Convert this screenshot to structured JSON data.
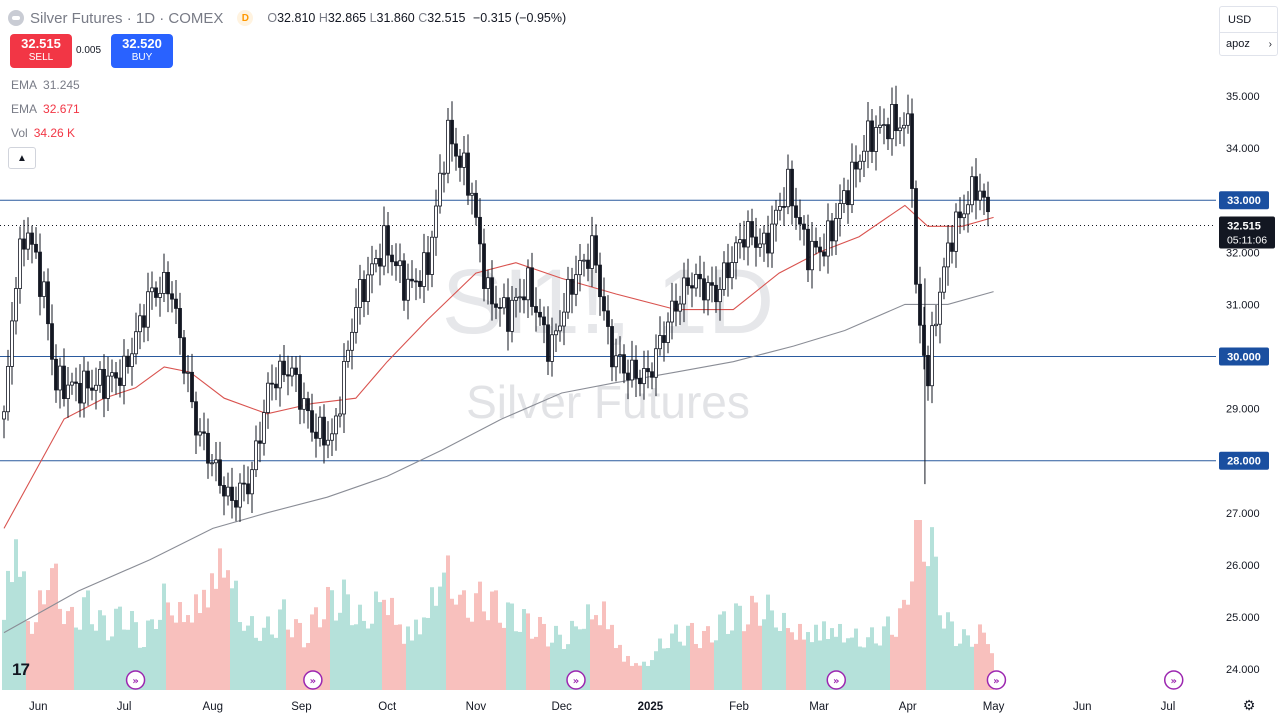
{
  "header": {
    "title": "Silver Futures · 1D · COMEX",
    "interval_badge": "D",
    "open_label": "O",
    "open": "32.810",
    "high_label": "H",
    "high": "32.865",
    "low_label": "L",
    "low": "31.860",
    "close_label": "C",
    "close": "32.515",
    "change": "−0.315 (−0.95%)"
  },
  "trade": {
    "sell_price": "32.515",
    "sell_label": "SELL",
    "spread": "0.005",
    "buy_price": "32.520",
    "buy_label": "BUY"
  },
  "indicators": [
    {
      "name": "EMA",
      "value": "31.245",
      "color": "#787b86"
    },
    {
      "name": "EMA",
      "value": "32.671",
      "color": "#f23645"
    },
    {
      "name": "Vol",
      "value": "34.26 K",
      "color": "#f23645"
    }
  ],
  "toolbar": {
    "currency": "USD",
    "unit": "apoz"
  },
  "watermark": {
    "ticker": "SI1!, 1D",
    "name": "Silver Futures"
  },
  "colors": {
    "up": "#ffffff",
    "down": "#131722",
    "candle_outline": "#131722",
    "ema_fast": "#d9534f",
    "ema_slow": "#8a8d96",
    "hline": "#2a5a9e",
    "vol_up": "#a8dcd4",
    "vol_down": "#f7b5b2",
    "price_tag": "#131722",
    "level_tag": "#1a4fa0"
  },
  "chart_data": {
    "type": "candlestick",
    "symbol": "SI1!",
    "ylim": [
      23.5,
      35.9
    ],
    "y_ticks": [
      "24.000",
      "25.000",
      "26.000",
      "27.000",
      "28.000",
      "29.000",
      "30.000",
      "31.000",
      "32.000",
      "33.000",
      "34.000",
      "35.000"
    ],
    "x_ticks": [
      "Jun",
      "Jul",
      "Aug",
      "Sep",
      "Oct",
      "Nov",
      "Dec",
      "2025",
      "Feb",
      "Mar",
      "Apr",
      "May",
      "Jun",
      "Jul"
    ],
    "horizontal_levels": [
      "33.000",
      "30.000",
      "28.000"
    ],
    "current_price": "32.515",
    "countdown": "05:11:06",
    "price_path": [
      [
        "2024-05-20",
        28.8
      ],
      [
        "2024-05-24",
        31.5
      ],
      [
        "2024-05-28",
        32.5
      ],
      [
        "2024-06-03",
        31.2
      ],
      [
        "2024-06-07",
        29.5
      ],
      [
        "2024-06-14",
        29.4
      ],
      [
        "2024-06-24",
        29.5
      ],
      [
        "2024-07-01",
        29.7
      ],
      [
        "2024-07-10",
        31.2
      ],
      [
        "2024-07-17",
        31.4
      ],
      [
        "2024-07-26",
        28.7
      ],
      [
        "2024-08-07",
        27.2
      ],
      [
        "2024-08-14",
        27.6
      ],
      [
        "2024-08-21",
        29.5
      ],
      [
        "2024-08-28",
        29.8
      ],
      [
        "2024-09-05",
        28.6
      ],
      [
        "2024-09-12",
        28.4
      ],
      [
        "2024-09-20",
        31.0
      ],
      [
        "2024-09-30",
        32.2
      ],
      [
        "2024-10-08",
        31.3
      ],
      [
        "2024-10-15",
        31.7
      ],
      [
        "2024-10-22",
        34.3
      ],
      [
        "2024-10-30",
        33.3
      ],
      [
        "2024-11-05",
        31.2
      ],
      [
        "2024-11-12",
        30.8
      ],
      [
        "2024-11-19",
        31.4
      ],
      [
        "2024-11-27",
        30.1
      ],
      [
        "2024-12-05",
        31.5
      ],
      [
        "2024-12-12",
        32.1
      ],
      [
        "2024-12-18",
        30.1
      ],
      [
        "2024-12-24",
        29.7
      ],
      [
        "2024-12-31",
        29.6
      ],
      [
        "2025-01-08",
        30.8
      ],
      [
        "2025-01-15",
        31.5
      ],
      [
        "2025-01-24",
        31.2
      ],
      [
        "2025-02-03",
        32.4
      ],
      [
        "2025-02-10",
        32.1
      ],
      [
        "2025-02-18",
        33.3
      ],
      [
        "2025-02-25",
        32.0
      ],
      [
        "2025-03-03",
        32.1
      ],
      [
        "2025-03-10",
        33.1
      ],
      [
        "2025-03-18",
        34.2
      ],
      [
        "2025-03-26",
        34.5
      ],
      [
        "2025-04-02",
        34.4
      ],
      [
        "2025-04-04",
        31.0
      ],
      [
        "2025-04-08",
        29.6
      ],
      [
        "2025-04-11",
        30.9
      ],
      [
        "2025-04-16",
        32.3
      ],
      [
        "2025-04-23",
        33.1
      ],
      [
        "2025-04-25",
        33.3
      ],
      [
        "2025-04-28",
        32.9
      ],
      [
        "2025-05-01",
        32.5
      ]
    ],
    "ema_fast_path": [
      [
        "2024-05-20",
        26.7
      ],
      [
        "2024-06-10",
        28.8
      ],
      [
        "2024-06-24",
        29.2
      ],
      [
        "2024-07-05",
        29.4
      ],
      [
        "2024-07-15",
        29.8
      ],
      [
        "2024-07-24",
        29.7
      ],
      [
        "2024-08-05",
        29.2
      ],
      [
        "2024-08-20",
        28.9
      ],
      [
        "2024-09-05",
        29.1
      ],
      [
        "2024-09-20",
        29.2
      ],
      [
        "2024-10-01",
        29.9
      ],
      [
        "2024-10-15",
        30.7
      ],
      [
        "2024-11-01",
        31.6
      ],
      [
        "2024-11-15",
        31.8
      ],
      [
        "2024-12-01",
        31.5
      ],
      [
        "2024-12-20",
        31.2
      ],
      [
        "2025-01-10",
        30.9
      ],
      [
        "2025-01-30",
        30.9
      ],
      [
        "2025-02-15",
        31.6
      ],
      [
        "2025-03-01",
        32.0
      ],
      [
        "2025-03-15",
        32.3
      ],
      [
        "2025-03-31",
        32.9
      ],
      [
        "2025-04-08",
        32.5
      ],
      [
        "2025-04-20",
        32.5
      ],
      [
        "2025-05-01",
        32.67
      ]
    ],
    "ema_slow_path": [
      [
        "2024-05-20",
        24.7
      ],
      [
        "2024-06-15",
        25.5
      ],
      [
        "2024-07-10",
        26.1
      ],
      [
        "2024-08-01",
        26.7
      ],
      [
        "2024-08-20",
        27.0
      ],
      [
        "2024-09-10",
        27.3
      ],
      [
        "2024-10-01",
        27.7
      ],
      [
        "2024-10-20",
        28.2
      ],
      [
        "2024-11-10",
        28.8
      ],
      [
        "2024-12-01",
        29.3
      ],
      [
        "2024-12-20",
        29.5
      ],
      [
        "2025-01-10",
        29.7
      ],
      [
        "2025-01-30",
        29.9
      ],
      [
        "2025-02-20",
        30.2
      ],
      [
        "2025-03-10",
        30.5
      ],
      [
        "2025-03-31",
        31.0
      ],
      [
        "2025-04-15",
        31.0
      ],
      [
        "2025-05-01",
        31.245
      ]
    ],
    "volume_path": [
      [
        "2024-05-20",
        0.55
      ],
      [
        "2024-05-24",
        0.95
      ],
      [
        "2024-05-30",
        0.35
      ],
      [
        "2024-06-05",
        0.75
      ],
      [
        "2024-06-12",
        0.4
      ],
      [
        "2024-06-18",
        0.5
      ],
      [
        "2024-06-25",
        0.35
      ],
      [
        "2024-07-01",
        0.45
      ],
      [
        "2024-07-08",
        0.3
      ],
      [
        "2024-07-15",
        0.55
      ],
      [
        "2024-07-22",
        0.45
      ],
      [
        "2024-07-29",
        0.6
      ],
      [
        "2024-08-05",
        0.85
      ],
      [
        "2024-08-12",
        0.4
      ],
      [
        "2024-08-19",
        0.35
      ],
      [
        "2024-08-26",
        0.45
      ],
      [
        "2024-09-02",
        0.3
      ],
      [
        "2024-09-09",
        0.5
      ],
      [
        "2024-09-16",
        0.55
      ],
      [
        "2024-09-23",
        0.4
      ],
      [
        "2024-09-30",
        0.6
      ],
      [
        "2024-10-07",
        0.35
      ],
      [
        "2024-10-14",
        0.45
      ],
      [
        "2024-10-21",
        0.75
      ],
      [
        "2024-10-28",
        0.5
      ],
      [
        "2024-11-04",
        0.55
      ],
      [
        "2024-11-11",
        0.45
      ],
      [
        "2024-11-18",
        0.4
      ],
      [
        "2024-11-25",
        0.35
      ],
      [
        "2024-12-02",
        0.3
      ],
      [
        "2024-12-09",
        0.45
      ],
      [
        "2024-12-16",
        0.5
      ],
      [
        "2024-12-23",
        0.2
      ],
      [
        "2024-12-30",
        0.15
      ],
      [
        "2025-01-06",
        0.3
      ],
      [
        "2025-01-13",
        0.35
      ],
      [
        "2025-01-20",
        0.3
      ],
      [
        "2025-01-27",
        0.4
      ],
      [
        "2025-02-03",
        0.45
      ],
      [
        "2025-02-10",
        0.5
      ],
      [
        "2025-02-17",
        0.4
      ],
      [
        "2025-02-24",
        0.35
      ],
      [
        "2025-03-03",
        0.4
      ],
      [
        "2025-03-10",
        0.35
      ],
      [
        "2025-03-17",
        0.3
      ],
      [
        "2025-03-24",
        0.35
      ],
      [
        "2025-03-31",
        0.45
      ],
      [
        "2025-04-04",
        1.0
      ],
      [
        "2025-04-09",
        0.85
      ],
      [
        "2025-04-14",
        0.4
      ],
      [
        "2025-04-21",
        0.3
      ],
      [
        "2025-04-28",
        0.35
      ],
      [
        "2025-05-01",
        0.25
      ]
    ]
  }
}
